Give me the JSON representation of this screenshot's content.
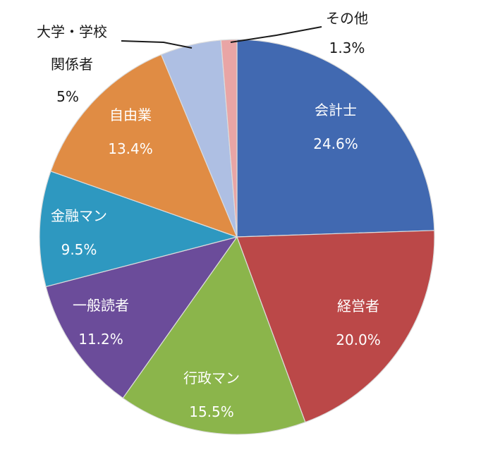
{
  "chart_data": {
    "type": "pie",
    "start_angle_deg": 0,
    "direction": "clockwise",
    "slices": [
      {
        "label": "会計士",
        "value": 24.6,
        "value_label": "24.6%",
        "color": "#4169b1",
        "label_color": "#ffffff"
      },
      {
        "label": "経営者",
        "value": 20.0,
        "value_label": "20.0%",
        "color": "#bb4848",
        "label_color": "#ffffff"
      },
      {
        "label": "行政マン",
        "value": 15.5,
        "value_label": "15.5%",
        "color": "#8bb54b",
        "label_color": "#ffffff"
      },
      {
        "label": "一般読者",
        "value": 11.2,
        "value_label": "11.2%",
        "color": "#6b4c9a",
        "label_color": "#ffffff"
      },
      {
        "label": "金融マン",
        "value": 9.5,
        "value_label": "9.5%",
        "color": "#2e98c0",
        "label_color": "#ffffff"
      },
      {
        "label": "自由業",
        "value": 13.4,
        "value_label": "13.4%",
        "color": "#e08c44",
        "label_color": "#ffffff"
      },
      {
        "label": "大学・学校\n関係者",
        "value": 5,
        "value_label": "5%",
        "color": "#aebfe3",
        "label_color": "#1a1a1a",
        "outside": true
      },
      {
        "label": "その他",
        "value": 1.3,
        "value_label": "1.3%",
        "color": "#e9a5a5",
        "label_color": "#1a1a1a",
        "outside": true
      }
    ]
  }
}
